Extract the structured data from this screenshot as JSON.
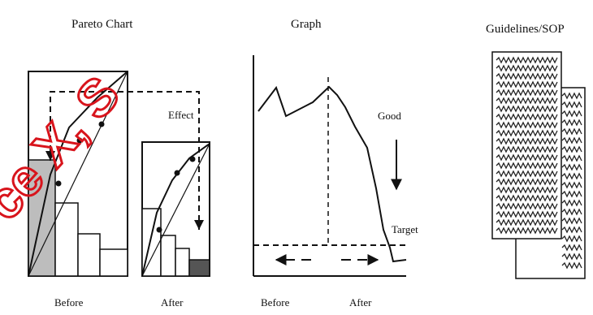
{
  "pareto": {
    "title": "Pareto Chart",
    "effect_label": "Effect",
    "before_label": "Before",
    "after_label": "After"
  },
  "graph": {
    "title": "Graph",
    "good_label": "Good",
    "target_label": "Target",
    "before_label": "Before",
    "after_label": "After"
  },
  "guidelines": {
    "title": "Guidelines/SOP"
  },
  "watermark": {
    "text": "ce X, S",
    "color": "#d8141c"
  }
}
